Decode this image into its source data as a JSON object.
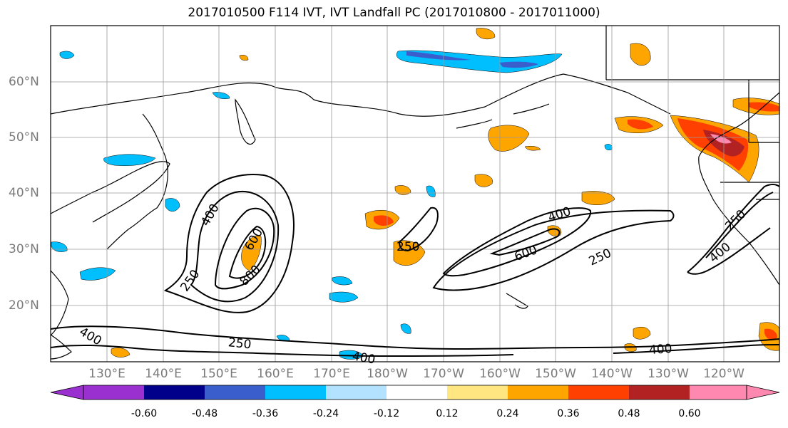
{
  "title": "2017010500 F114 IVT, IVT Landfall PC (2017010800 - 2017011000)",
  "lat_labels": [
    "60°N",
    "50°N",
    "40°N",
    "30°N",
    "20°N"
  ],
  "lon_labels": [
    "130°E",
    "140°E",
    "150°E",
    "160°E",
    "170°E",
    "180°W",
    "170°W",
    "160°W",
    "150°W",
    "140°W",
    "130°W",
    "120°W"
  ],
  "colorbar": {
    "ticks": [
      "-0.60",
      "-0.48",
      "-0.36",
      "-0.24",
      "-0.12",
      "0.12",
      "0.24",
      "0.36",
      "0.48",
      "0.60"
    ],
    "colors": [
      "#9b30d0",
      "#00008b",
      "#3a5fcd",
      "#00bfff",
      "#b2e2ff",
      "#ffffff",
      "#ffe680",
      "#ffa500",
      "#ff4000",
      "#b22222",
      "#ff88b0"
    ]
  },
  "contour_labels": [
    "400",
    "600",
    "800",
    "250",
    "250",
    "400",
    "600",
    "250",
    "250",
    "400",
    "250",
    "400",
    "400",
    "400"
  ]
}
